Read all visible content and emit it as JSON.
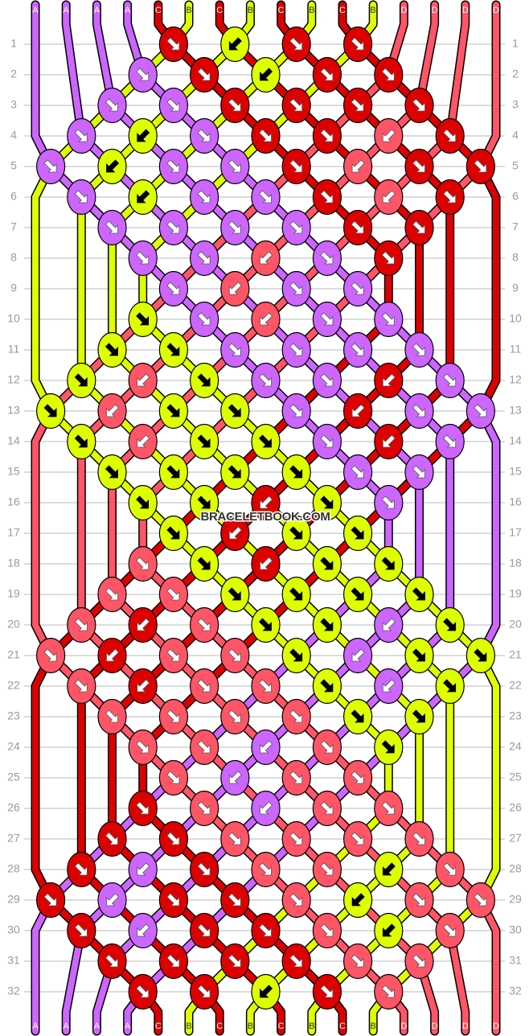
{
  "watermark": "BRACELETBOOK.COM",
  "colors": {
    "p": "#cc66ff",
    "y": "#ddff00",
    "r": "#dd0000",
    "k": "#ff5566"
  },
  "string_colors": {
    "A": "p",
    "B": "y",
    "C": "r",
    "D": "k"
  },
  "top_labels": [
    "A",
    "A",
    "A",
    "A",
    "C",
    "B",
    "C",
    "B",
    "C",
    "B",
    "C",
    "B",
    "D",
    "D",
    "D",
    "D"
  ],
  "bottom_labels": [
    "A",
    "A",
    "A",
    "A",
    "C",
    "B",
    "C",
    "B",
    "C",
    "B",
    "C",
    "B",
    "D",
    "D",
    "D",
    "D"
  ],
  "row_numbers": [
    "1",
    "2",
    "3",
    "4",
    "5",
    "6",
    "7",
    "8",
    "9",
    "10",
    "11",
    "12",
    "13",
    "14",
    "15",
    "16",
    "17",
    "18",
    "19",
    "20",
    "21",
    "22",
    "23",
    "24",
    "25",
    "26",
    "27",
    "28",
    "29",
    "30",
    "31",
    "32"
  ],
  "knot_rows": [
    [
      [
        2,
        "r",
        "↘"
      ],
      [
        3,
        "y",
        "↙"
      ],
      [
        4,
        "r",
        "↘"
      ],
      [
        5,
        "r",
        "↘"
      ]
    ],
    [
      [
        1,
        "p",
        "↘"
      ],
      [
        2,
        "r",
        "↘"
      ],
      [
        3,
        "y",
        "↙"
      ],
      [
        4,
        "r",
        "↘"
      ],
      [
        5,
        "r",
        "↘"
      ]
    ],
    [
      [
        1,
        "p",
        "↘"
      ],
      [
        2,
        "p",
        "↘"
      ],
      [
        3,
        "r",
        "↘"
      ],
      [
        4,
        "r",
        "↘"
      ],
      [
        5,
        "r",
        "↘"
      ],
      [
        6,
        "r",
        "↘"
      ]
    ],
    [
      [
        0,
        "p",
        "↘"
      ],
      [
        1,
        "y",
        "↙"
      ],
      [
        2,
        "p",
        "↘"
      ],
      [
        3,
        "r",
        "↘"
      ],
      [
        4,
        "r",
        "↘"
      ],
      [
        5,
        "k",
        "↙"
      ],
      [
        6,
        "r",
        "↘"
      ]
    ],
    [
      [
        0,
        "p",
        "↘"
      ],
      [
        1,
        "y",
        "↙"
      ],
      [
        2,
        "p",
        "↘"
      ],
      [
        3,
        "p",
        "↘"
      ],
      [
        4,
        "r",
        "↘"
      ],
      [
        5,
        "k",
        "↙"
      ],
      [
        6,
        "r",
        "↘"
      ],
      [
        7,
        "r",
        "↘"
      ]
    ],
    [
      [
        0,
        "p",
        "↘"
      ],
      [
        1,
        "y",
        "↙"
      ],
      [
        2,
        "p",
        "↘"
      ],
      [
        3,
        "p",
        "↘"
      ],
      [
        4,
        "r",
        "↘"
      ],
      [
        5,
        "k",
        "↙"
      ],
      [
        6,
        "r",
        "↘"
      ]
    ],
    [
      [
        1,
        "p",
        "↘"
      ],
      [
        2,
        "p",
        "↘"
      ],
      [
        3,
        "p",
        "↘"
      ],
      [
        4,
        "p",
        "↘"
      ],
      [
        5,
        "r",
        "↘"
      ],
      [
        6,
        "r",
        "↘"
      ]
    ],
    [
      [
        1,
        "p",
        "↘"
      ],
      [
        2,
        "p",
        "↘"
      ],
      [
        3,
        "k",
        "↙"
      ],
      [
        4,
        "p",
        "↘"
      ],
      [
        5,
        "r",
        "↘"
      ]
    ],
    [
      [
        2,
        "p",
        "↘"
      ],
      [
        3,
        "k",
        "↙"
      ],
      [
        4,
        "p",
        "↘"
      ],
      [
        5,
        "p",
        "↘"
      ]
    ],
    [
      [
        1,
        "y",
        "↘"
      ],
      [
        2,
        "p",
        "↘"
      ],
      [
        3,
        "k",
        "↙"
      ],
      [
        4,
        "p",
        "↘"
      ],
      [
        5,
        "p",
        "↘"
      ]
    ],
    [
      [
        1,
        "y",
        "↘"
      ],
      [
        2,
        "y",
        "↘"
      ],
      [
        3,
        "p",
        "↘"
      ],
      [
        4,
        "p",
        "↘"
      ],
      [
        5,
        "p",
        "↘"
      ],
      [
        6,
        "p",
        "↘"
      ]
    ],
    [
      [
        0,
        "y",
        "↘"
      ],
      [
        1,
        "k",
        "↙"
      ],
      [
        2,
        "y",
        "↘"
      ],
      [
        3,
        "p",
        "↘"
      ],
      [
        4,
        "p",
        "↘"
      ],
      [
        5,
        "r",
        "↙"
      ],
      [
        6,
        "p",
        "↘"
      ]
    ],
    [
      [
        0,
        "y",
        "↘"
      ],
      [
        1,
        "k",
        "↙"
      ],
      [
        2,
        "y",
        "↘"
      ],
      [
        3,
        "y",
        "↘"
      ],
      [
        4,
        "p",
        "↘"
      ],
      [
        5,
        "r",
        "↙"
      ],
      [
        6,
        "p",
        "↘"
      ],
      [
        7,
        "p",
        "↘"
      ]
    ],
    [
      [
        0,
        "y",
        "↘"
      ],
      [
        1,
        "k",
        "↙"
      ],
      [
        2,
        "y",
        "↘"
      ],
      [
        3,
        "y",
        "↘"
      ],
      [
        4,
        "p",
        "↘"
      ],
      [
        5,
        "r",
        "↙"
      ],
      [
        6,
        "p",
        "↘"
      ]
    ],
    [
      [
        1,
        "y",
        "↘"
      ],
      [
        2,
        "y",
        "↘"
      ],
      [
        3,
        "y",
        "↘"
      ],
      [
        4,
        "y",
        "↘"
      ],
      [
        5,
        "p",
        "↘"
      ],
      [
        6,
        "p",
        "↘"
      ]
    ],
    [
      [
        1,
        "y",
        "↘"
      ],
      [
        2,
        "y",
        "↘"
      ],
      [
        3,
        "r",
        "↙"
      ],
      [
        4,
        "y",
        "↘"
      ],
      [
        5,
        "p",
        "↘"
      ]
    ],
    [
      [
        2,
        "y",
        "↘"
      ],
      [
        3,
        "r",
        "↙"
      ],
      [
        4,
        "y",
        "↘"
      ],
      [
        5,
        "y",
        "↘"
      ]
    ],
    [
      [
        1,
        "k",
        "↘"
      ],
      [
        2,
        "y",
        "↘"
      ],
      [
        3,
        "r",
        "↙"
      ],
      [
        4,
        "y",
        "↘"
      ],
      [
        5,
        "y",
        "↘"
      ]
    ],
    [
      [
        1,
        "k",
        "↘"
      ],
      [
        2,
        "k",
        "↘"
      ],
      [
        3,
        "y",
        "↘"
      ],
      [
        4,
        "y",
        "↘"
      ],
      [
        5,
        "y",
        "↘"
      ],
      [
        6,
        "y",
        "↘"
      ]
    ],
    [
      [
        0,
        "k",
        "↘"
      ],
      [
        1,
        "r",
        "↙"
      ],
      [
        2,
        "k",
        "↘"
      ],
      [
        3,
        "y",
        "↘"
      ],
      [
        4,
        "y",
        "↘"
      ],
      [
        5,
        "p",
        "↙"
      ],
      [
        6,
        "y",
        "↘"
      ]
    ],
    [
      [
        0,
        "k",
        "↘"
      ],
      [
        1,
        "r",
        "↙"
      ],
      [
        2,
        "k",
        "↘"
      ],
      [
        3,
        "k",
        "↘"
      ],
      [
        4,
        "y",
        "↘"
      ],
      [
        5,
        "p",
        "↙"
      ],
      [
        6,
        "y",
        "↘"
      ],
      [
        7,
        "y",
        "↘"
      ]
    ],
    [
      [
        0,
        "k",
        "↘"
      ],
      [
        1,
        "r",
        "↙"
      ],
      [
        2,
        "k",
        "↘"
      ],
      [
        3,
        "k",
        "↘"
      ],
      [
        4,
        "y",
        "↘"
      ],
      [
        5,
        "p",
        "↙"
      ],
      [
        6,
        "y",
        "↘"
      ]
    ],
    [
      [
        1,
        "k",
        "↘"
      ],
      [
        2,
        "k",
        "↘"
      ],
      [
        3,
        "k",
        "↘"
      ],
      [
        4,
        "k",
        "↘"
      ],
      [
        5,
        "y",
        "↘"
      ],
      [
        6,
        "y",
        "↘"
      ]
    ],
    [
      [
        1,
        "k",
        "↘"
      ],
      [
        2,
        "k",
        "↘"
      ],
      [
        3,
        "p",
        "↙"
      ],
      [
        4,
        "k",
        "↘"
      ],
      [
        5,
        "y",
        "↘"
      ]
    ],
    [
      [
        2,
        "k",
        "↘"
      ],
      [
        3,
        "p",
        "↙"
      ],
      [
        4,
        "k",
        "↘"
      ],
      [
        5,
        "k",
        "↘"
      ]
    ],
    [
      [
        1,
        "r",
        "↘"
      ],
      [
        2,
        "k",
        "↘"
      ],
      [
        3,
        "p",
        "↙"
      ],
      [
        4,
        "k",
        "↘"
      ],
      [
        5,
        "k",
        "↘"
      ]
    ],
    [
      [
        1,
        "r",
        "↘"
      ],
      [
        2,
        "r",
        "↘"
      ],
      [
        3,
        "k",
        "↘"
      ],
      [
        4,
        "k",
        "↘"
      ],
      [
        5,
        "k",
        "↘"
      ],
      [
        6,
        "k",
        "↘"
      ]
    ],
    [
      [
        0,
        "r",
        "↘"
      ],
      [
        1,
        "p",
        "↙"
      ],
      [
        2,
        "r",
        "↘"
      ],
      [
        3,
        "k",
        "↘"
      ],
      [
        4,
        "k",
        "↘"
      ],
      [
        5,
        "y",
        "↙"
      ],
      [
        6,
        "k",
        "↘"
      ]
    ],
    [
      [
        0,
        "r",
        "↘"
      ],
      [
        1,
        "p",
        "↙"
      ],
      [
        2,
        "r",
        "↘"
      ],
      [
        3,
        "r",
        "↘"
      ],
      [
        4,
        "k",
        "↘"
      ],
      [
        5,
        "y",
        "↙"
      ],
      [
        6,
        "k",
        "↘"
      ],
      [
        7,
        "k",
        "↘"
      ]
    ],
    [
      [
        0,
        "r",
        "↘"
      ],
      [
        1,
        "p",
        "↙"
      ],
      [
        2,
        "r",
        "↘"
      ],
      [
        3,
        "r",
        "↘"
      ],
      [
        4,
        "k",
        "↘"
      ],
      [
        5,
        "y",
        "↙"
      ],
      [
        6,
        "k",
        "↘"
      ]
    ],
    [
      [
        1,
        "r",
        "↘"
      ],
      [
        2,
        "r",
        "↘"
      ],
      [
        3,
        "r",
        "↘"
      ],
      [
        4,
        "r",
        "↘"
      ],
      [
        5,
        "k",
        "↘"
      ],
      [
        6,
        "k",
        "↘"
      ]
    ],
    [
      [
        1,
        "r",
        "↘"
      ],
      [
        2,
        "r",
        "↘"
      ],
      [
        3,
        "y",
        "↙"
      ],
      [
        4,
        "r",
        "↘"
      ],
      [
        5,
        "k",
        "↘"
      ]
    ]
  ]
}
